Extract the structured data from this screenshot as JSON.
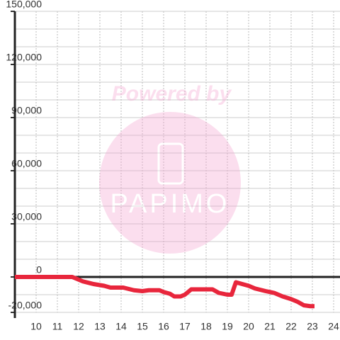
{
  "chart_data": {
    "type": "line",
    "x": [
      9,
      11.7,
      12.2,
      12.7,
      13.2,
      13.5,
      14.1,
      14.6,
      15,
      15.3,
      15.8,
      16,
      16.3,
      16.5,
      16.8,
      17,
      17.3,
      18,
      18.3,
      18.6,
      19,
      19.2,
      19.4,
      19.7,
      20,
      20.3,
      20.8,
      21.2,
      21.6,
      22,
      22.3,
      22.6,
      22.9,
      23.1
    ],
    "values": [
      0,
      0,
      -2500,
      -4000,
      -5000,
      -6000,
      -6000,
      -7500,
      -8000,
      -7500,
      -7500,
      -8500,
      -9500,
      -11000,
      -11000,
      -10000,
      -7000,
      -7000,
      -7000,
      -9000,
      -10000,
      -10000,
      -3000,
      -4000,
      -5000,
      -6500,
      -8000,
      -9000,
      -11000,
      -12500,
      -14000,
      -16000,
      -16500,
      -16500
    ],
    "color": "#e8263c",
    "xlim": [
      9,
      24.3
    ],
    "ylim": [
      -20000,
      150000
    ],
    "xticks": [
      10,
      11,
      12,
      13,
      14,
      15,
      16,
      17,
      18,
      19,
      20,
      21,
      22,
      23,
      24
    ],
    "yticks": [
      {
        "value": -20000,
        "label": "-20,000"
      },
      0,
      {
        "value": 30000,
        "label": "30,000"
      },
      {
        "value": 60000,
        "label": "60,000"
      },
      {
        "value": 90000,
        "label": "90,000"
      },
      {
        "value": 120000,
        "label": "120,000"
      },
      {
        "value": 150000,
        "label": "150,000"
      }
    ],
    "ygrid": [
      -10000,
      10000,
      20000,
      40000,
      50000,
      70000,
      80000,
      100000,
      110000,
      130000,
      140000
    ],
    "grid": true
  },
  "watermark": {
    "text": "Powered by",
    "brand": "PAPIMO"
  }
}
